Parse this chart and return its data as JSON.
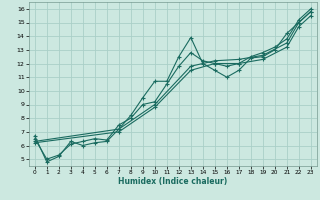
{
  "title": "",
  "xlabel": "Humidex (Indice chaleur)",
  "bg_color": "#cce8e0",
  "line_color": "#1a6b60",
  "grid_color": "#aacfc8",
  "xlim": [
    -0.5,
    23.5
  ],
  "ylim": [
    4.5,
    16.5
  ],
  "xticks": [
    0,
    1,
    2,
    3,
    4,
    5,
    6,
    7,
    8,
    9,
    10,
    11,
    12,
    13,
    14,
    15,
    16,
    17,
    18,
    19,
    20,
    21,
    22,
    23
  ],
  "yticks": [
    5,
    6,
    7,
    8,
    9,
    10,
    11,
    12,
    13,
    14,
    15,
    16
  ],
  "series1": [
    [
      0,
      6.7
    ],
    [
      1,
      4.8
    ],
    [
      2,
      5.2
    ],
    [
      3,
      6.3
    ],
    [
      4,
      6.0
    ],
    [
      5,
      6.2
    ],
    [
      6,
      6.3
    ],
    [
      7,
      7.2
    ],
    [
      8,
      8.2
    ],
    [
      9,
      9.5
    ],
    [
      10,
      10.7
    ],
    [
      11,
      10.7
    ],
    [
      12,
      12.5
    ],
    [
      13,
      13.9
    ],
    [
      14,
      12.0
    ],
    [
      15,
      11.5
    ],
    [
      16,
      11.0
    ],
    [
      17,
      11.5
    ],
    [
      18,
      12.4
    ],
    [
      19,
      12.5
    ],
    [
      20,
      13.0
    ],
    [
      21,
      14.2
    ],
    [
      22,
      15.0
    ],
    [
      23,
      15.8
    ]
  ],
  "series2": [
    [
      0,
      6.5
    ],
    [
      1,
      5.0
    ],
    [
      2,
      5.3
    ],
    [
      3,
      6.1
    ],
    [
      4,
      6.3
    ],
    [
      5,
      6.5
    ],
    [
      6,
      6.4
    ],
    [
      7,
      7.5
    ],
    [
      8,
      8.0
    ],
    [
      9,
      9.0
    ],
    [
      10,
      9.2
    ],
    [
      11,
      10.5
    ],
    [
      12,
      11.8
    ],
    [
      13,
      12.8
    ],
    [
      14,
      12.2
    ],
    [
      15,
      12.0
    ],
    [
      16,
      11.8
    ],
    [
      17,
      12.0
    ],
    [
      18,
      12.5
    ],
    [
      19,
      12.8
    ],
    [
      20,
      13.2
    ],
    [
      21,
      13.8
    ],
    [
      22,
      15.2
    ],
    [
      23,
      16.0
    ]
  ],
  "series3": [
    [
      0,
      6.3
    ],
    [
      7,
      7.2
    ],
    [
      10,
      9.0
    ],
    [
      13,
      11.8
    ],
    [
      15,
      12.2
    ],
    [
      17,
      12.3
    ],
    [
      19,
      12.6
    ],
    [
      21,
      13.5
    ],
    [
      22,
      15.0
    ],
    [
      23,
      15.8
    ]
  ],
  "series4": [
    [
      0,
      6.2
    ],
    [
      7,
      7.0
    ],
    [
      10,
      8.8
    ],
    [
      13,
      11.5
    ],
    [
      15,
      12.0
    ],
    [
      17,
      12.0
    ],
    [
      19,
      12.3
    ],
    [
      21,
      13.2
    ],
    [
      22,
      14.7
    ],
    [
      23,
      15.5
    ]
  ]
}
